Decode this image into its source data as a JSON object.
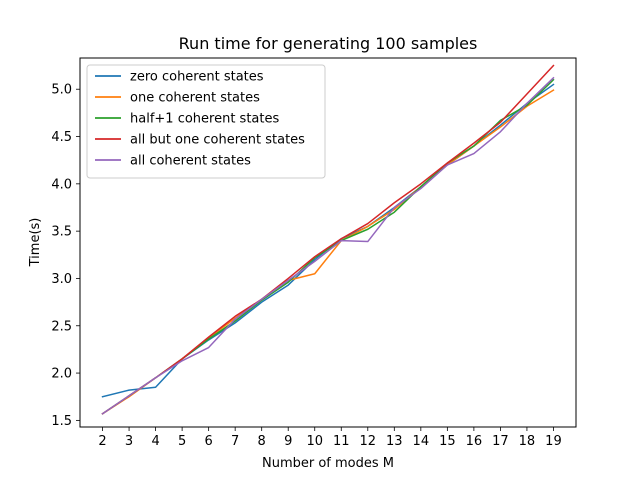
{
  "chart_data": {
    "type": "line",
    "title": "Run time for generating 100 samples",
    "xlabel": "Number of modes M",
    "ylabel": "Time(s)",
    "x": [
      2,
      3,
      4,
      5,
      6,
      7,
      8,
      9,
      10,
      11,
      12,
      13,
      14,
      15,
      16,
      17,
      18,
      19
    ],
    "xlim": [
      1.15,
      19.85
    ],
    "ylim": [
      1.43,
      5.33
    ],
    "xticks": [
      2,
      3,
      4,
      5,
      6,
      7,
      8,
      9,
      10,
      11,
      12,
      13,
      14,
      15,
      16,
      17,
      18,
      19
    ],
    "yticks": [
      1.5,
      2.0,
      2.5,
      3.0,
      3.5,
      4.0,
      4.5,
      5.0
    ],
    "ytick_labels": [
      "1.5",
      "2.0",
      "2.5",
      "3.0",
      "3.5",
      "4.0",
      "4.5",
      "5.0"
    ],
    "grid": false,
    "legend_position": "top-left",
    "series": [
      {
        "name": "zero coherent states",
        "color": "#1f77b4",
        "values": [
          1.75,
          1.82,
          1.85,
          2.15,
          2.35,
          2.53,
          2.75,
          2.93,
          3.2,
          3.42,
          3.55,
          3.75,
          3.97,
          4.2,
          4.4,
          4.62,
          4.85,
          5.05
        ]
      },
      {
        "name": "one coherent states",
        "color": "#ff7f0e",
        "values": [
          1.57,
          1.75,
          1.95,
          2.15,
          2.37,
          2.58,
          2.78,
          2.98,
          3.05,
          3.4,
          3.55,
          3.73,
          3.97,
          4.2,
          4.4,
          4.6,
          4.82,
          4.99
        ]
      },
      {
        "name": "half+1 coherent states",
        "color": "#2ca02c",
        "values": [
          1.57,
          1.76,
          1.95,
          2.15,
          2.36,
          2.55,
          2.77,
          2.96,
          3.22,
          3.4,
          3.52,
          3.7,
          3.97,
          4.22,
          4.4,
          4.67,
          4.83,
          5.1
        ]
      },
      {
        "name": "all but one coherent states",
        "color": "#d62728",
        "values": [
          1.57,
          1.76,
          1.95,
          2.15,
          2.38,
          2.6,
          2.78,
          3.0,
          3.23,
          3.42,
          3.58,
          3.8,
          4.0,
          4.22,
          4.43,
          4.65,
          4.95,
          5.25
        ]
      },
      {
        "name": "all coherent states",
        "color": "#9467bd",
        "values": [
          1.57,
          1.76,
          1.95,
          2.13,
          2.27,
          2.57,
          2.78,
          2.98,
          3.18,
          3.4,
          3.39,
          3.75,
          3.95,
          4.2,
          4.32,
          4.55,
          4.85,
          5.12
        ]
      }
    ]
  }
}
